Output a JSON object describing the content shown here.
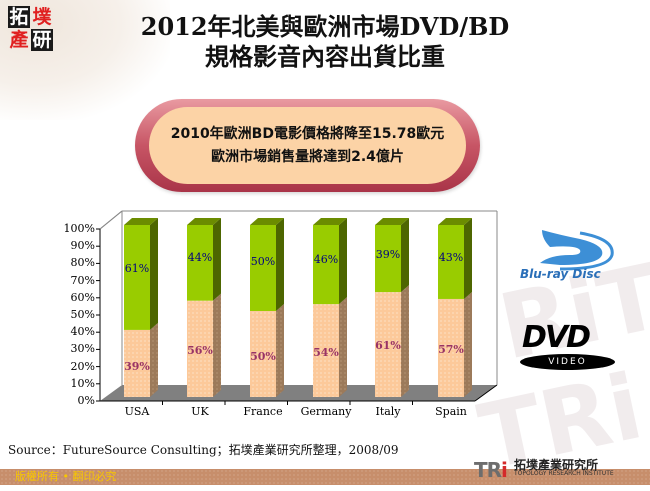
{
  "header": {
    "logo_chars": [
      "拓",
      "墣",
      "產",
      "研"
    ],
    "title_line1": "2012年北美與歐洲市場DVD/BD",
    "title_line2": "規格影音內容出貨比重"
  },
  "callout": {
    "line1": "2010年歐洲BD電影價格將降至15.78歐元",
    "line2": "歐洲市場銷售量將達到2.4億片"
  },
  "logos": {
    "bluray": "Blu-ray Disc",
    "dvd": "DVD",
    "dvd_sub": "VIDEO"
  },
  "chart_data": {
    "type": "bar",
    "stacked": true,
    "percent": true,
    "title": "2012年北美與歐洲市場DVD/BD規格影音內容出貨比重",
    "categories": [
      "USA",
      "UK",
      "France",
      "Germany",
      "Italy",
      "Spain"
    ],
    "series": [
      {
        "name": "DVD",
        "color": "#fcc99a",
        "values": [
          39,
          56,
          50,
          54,
          61,
          57
        ],
        "labels": [
          "39%",
          "56%",
          "50%",
          "54%",
          "61%",
          "57%"
        ]
      },
      {
        "name": "BD",
        "color": "#99cc00",
        "values": [
          61,
          44,
          50,
          46,
          39,
          43
        ],
        "labels": [
          "61%",
          "44%",
          "50%",
          "46%",
          "39%",
          "43%"
        ]
      }
    ],
    "yticks": [
      "0%",
      "10%",
      "20%",
      "30%",
      "40%",
      "50%",
      "60%",
      "70%",
      "80%",
      "90%",
      "100%"
    ],
    "ylim": [
      0,
      100
    ],
    "xlabel": "",
    "ylabel": "",
    "grid": false,
    "legend": "none (logos on right: Blu-ray Disc top, DVD Video bottom)"
  },
  "source": "Source：FutureSource Consulting；拓墣產業研究所整理，2008/09",
  "footer": {
    "copyright": "版權所有 • 翻印必究",
    "org_mark": "TRi",
    "org_cn": "拓墣產業研究所",
    "org_en": "TOPOLOGY RESEARCH INSTITUTE"
  }
}
